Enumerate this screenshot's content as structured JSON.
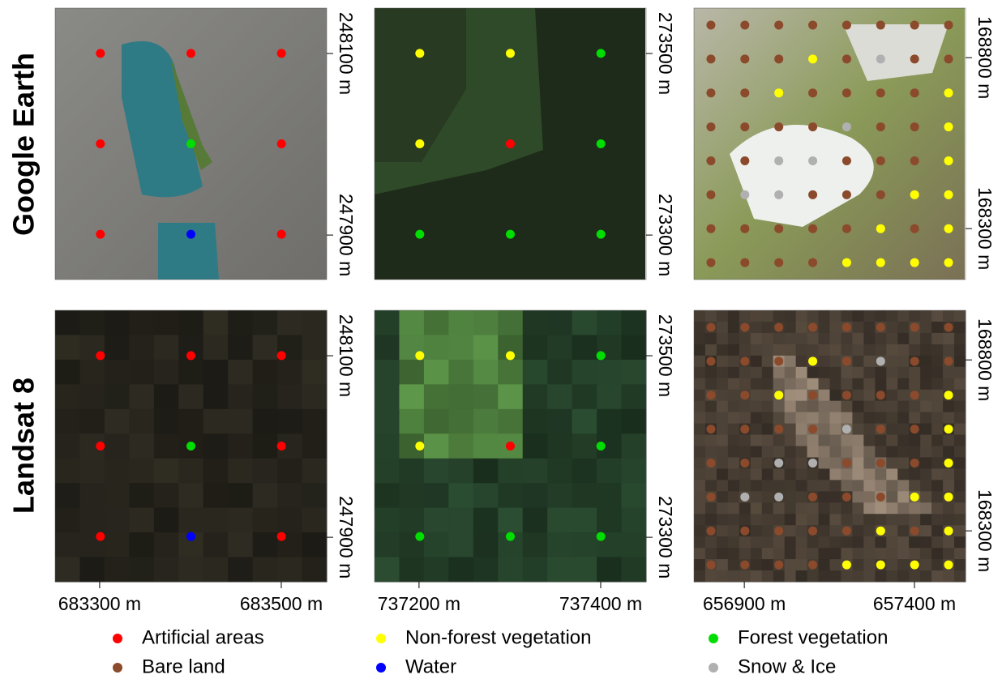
{
  "row_labels": [
    "Google Earth",
    "Landsat 8"
  ],
  "legend": [
    {
      "name": "Artificial areas",
      "color": "#ff0000"
    },
    {
      "name": "Non-forest vegetation",
      "color": "#ffff00"
    },
    {
      "name": "Forest vegetation",
      "color": "#00dd00"
    },
    {
      "name": "Bare land",
      "color": "#8b4a2b"
    },
    {
      "name": "Water",
      "color": "#0000ff"
    },
    {
      "name": "Snow & Ice",
      "color": "#b0b0b0"
    }
  ],
  "columns": [
    {
      "xlim": [
        683251,
        683550
      ],
      "xticks": [
        {
          "value": 683300,
          "label": "683300 m"
        },
        {
          "value": 683500,
          "label": "683500 m"
        }
      ],
      "ylim": [
        247851,
        248150
      ],
      "yticks": [
        {
          "value": 248100,
          "label": "248100 m"
        },
        {
          "value": 247900,
          "label": "247900 m"
        }
      ],
      "points": [
        [
          0,
          0,
          0
        ],
        [
          0,
          2,
          0
        ],
        [
          0,
          4,
          0
        ]
      ]
    },
    {
      "xlim": [
        737151,
        737450
      ],
      "xticks": [
        {
          "value": 737200,
          "label": "737200 m"
        },
        {
          "value": 737400,
          "label": "737400 m"
        }
      ],
      "ylim": [
        273251,
        273550
      ],
      "yticks": [
        {
          "value": 273500,
          "label": "273500 m"
        },
        {
          "value": 273300,
          "label": "273300 m"
        }
      ],
      "points": [
        [
          1,
          1,
          2
        ],
        [
          1,
          0,
          2
        ],
        [
          2,
          2,
          2
        ]
      ]
    },
    {
      "xlim": [
        656752,
        657550
      ],
      "xticks": [
        {
          "value": 656900,
          "label": "656900 m"
        },
        {
          "value": 657400,
          "label": "657400 m"
        }
      ],
      "ylim": [
        168151,
        168945
      ],
      "yticks": [
        {
          "value": 168800,
          "label": "168800 m"
        },
        {
          "value": 168300,
          "label": "168300 m"
        }
      ],
      "points": [
        [
          3,
          3,
          3,
          3,
          3,
          3,
          3,
          3
        ],
        [
          3,
          3,
          3,
          1,
          3,
          5,
          3,
          3
        ],
        [
          3,
          3,
          1,
          3,
          3,
          3,
          3,
          1
        ],
        [
          3,
          3,
          3,
          3,
          5,
          3,
          3,
          1
        ],
        [
          3,
          3,
          5,
          5,
          3,
          3,
          3,
          1
        ],
        [
          3,
          5,
          5,
          3,
          3,
          3,
          1,
          1
        ],
        [
          3,
          3,
          3,
          3,
          3,
          1,
          3,
          1
        ],
        [
          3,
          3,
          3,
          3,
          1,
          1,
          1,
          1
        ]
      ]
    }
  ]
}
